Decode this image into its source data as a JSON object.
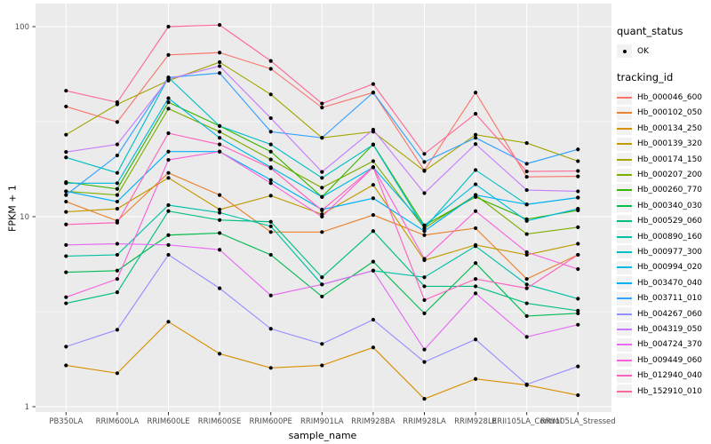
{
  "axes": {
    "x_label": "sample_name",
    "y_label": "FPKM + 1"
  },
  "legend": {
    "quant_status_title": "quant_status",
    "quant_status_value": "OK",
    "tracking_id_title": "tracking_id"
  },
  "chart_data": {
    "type": "line",
    "title": "",
    "xlabel": "sample_name",
    "ylabel": "FPKM + 1",
    "y_scale": "log10",
    "ylim": [
      1,
      110
    ],
    "y_ticks": [
      1,
      10,
      100
    ],
    "y_minor_ticks": [
      3.162,
      31.62
    ],
    "grid": true,
    "legend_position": "right",
    "panel_background": "#EBEBEB",
    "grid_color": "#FFFFFF",
    "point_color": "#000000",
    "quant_status": "OK",
    "categories": [
      "PB350LA",
      "RRIM600LA",
      "RRIM600LE",
      "RRIM600SE",
      "RRIM600PE",
      "RRIM901LA",
      "RRIM928BA",
      "RRIM928LA",
      "RRIM928LE",
      "RRII105LA_Control",
      "RRII105LA_Stressed"
    ],
    "series": [
      {
        "name": "Hb_000046_600",
        "color": "#F8766D",
        "values": [
          38,
          31.5,
          71,
          73,
          60,
          37.5,
          45,
          17.5,
          45,
          16.2,
          16.3
        ]
      },
      {
        "name": "Hb_000102_050",
        "color": "#EA8331",
        "values": [
          12,
          9.5,
          17,
          13,
          8.3,
          8.3,
          10.2,
          8.0,
          8.7,
          4.7,
          6.3
        ]
      },
      {
        "name": "Hb_000134_250",
        "color": "#D89000",
        "values": [
          1.65,
          1.5,
          2.8,
          1.9,
          1.6,
          1.65,
          2.05,
          1.1,
          1.4,
          1.3,
          1.15
        ]
      },
      {
        "name": "Hb_000139_320",
        "color": "#C09B00",
        "values": [
          10.6,
          11,
          16,
          10.9,
          12.9,
          10.3,
          14.7,
          5.9,
          7.1,
          6.3,
          7.2
        ]
      },
      {
        "name": "Hb_000174_150",
        "color": "#A3A500",
        "values": [
          27,
          39,
          52,
          65,
          44,
          26,
          28,
          17.4,
          27,
          24.4,
          19.6
        ]
      },
      {
        "name": "Hb_000207_200",
        "color": "#7CAE00",
        "values": [
          13.6,
          13,
          37,
          28,
          20,
          14.2,
          19.6,
          8.7,
          13,
          8.1,
          8.8
        ]
      },
      {
        "name": "Hb_000260_770",
        "color": "#39B600",
        "values": [
          15.2,
          14,
          40,
          30,
          22,
          12.7,
          24,
          9.0,
          12.7,
          9.7,
          10.8
        ]
      },
      {
        "name": "Hb_000340_030",
        "color": "#00BB4E",
        "values": [
          5.1,
          5.2,
          8.0,
          8.2,
          6.3,
          3.8,
          5.8,
          3.1,
          5.7,
          3.0,
          3.1
        ]
      },
      {
        "name": "Hb_000529_060",
        "color": "#00BF7D",
        "values": [
          3.5,
          4.0,
          10.7,
          9.6,
          9.4,
          4.8,
          8.4,
          4.3,
          4.3,
          3.5,
          3.2
        ]
      },
      {
        "name": "Hb_000890_160",
        "color": "#00C1A3",
        "values": [
          6.2,
          6.3,
          11.5,
          10.5,
          8.9,
          4.4,
          5.2,
          4.8,
          7.0,
          4.4,
          3.7
        ]
      },
      {
        "name": "Hb_000977_300",
        "color": "#00BFC4",
        "values": [
          20.5,
          17,
          54,
          30,
          24,
          16,
          23.9,
          8.7,
          17.6,
          11.6,
          12.6
        ]
      },
      {
        "name": "Hb_000994_020",
        "color": "#00BAE0",
        "values": [
          15,
          15,
          42,
          26,
          18.2,
          12.7,
          18.2,
          9.0,
          14.8,
          9.5,
          11
        ]
      },
      {
        "name": "Hb_003470_040",
        "color": "#00B0F6",
        "values": [
          13.6,
          12,
          22,
          22,
          15.6,
          10.9,
          12.5,
          8.4,
          13,
          11.6,
          12.6
        ]
      },
      {
        "name": "Hb_003711_010",
        "color": "#35A2FF",
        "values": [
          13,
          21,
          54,
          57,
          28,
          26,
          45,
          19.4,
          26,
          19,
          22.6
        ]
      },
      {
        "name": "Hb_004267_060",
        "color": "#9590FF",
        "values": [
          2.07,
          2.54,
          6.3,
          4.2,
          2.57,
          2.14,
          2.87,
          1.72,
          2.26,
          1.31,
          1.63
        ]
      },
      {
        "name": "Hb_004319_050",
        "color": "#C77CFF",
        "values": [
          21.9,
          24,
          53,
          62,
          33,
          17.2,
          28.7,
          13.3,
          24.1,
          13.8,
          13.6
        ]
      },
      {
        "name": "Hb_004724_370",
        "color": "#E76BF3",
        "values": [
          7.1,
          7.2,
          7.1,
          6.7,
          3.85,
          4.4,
          5.2,
          2.0,
          3.95,
          2.33,
          2.7
        ]
      },
      {
        "name": "Hb_009449_060",
        "color": "#FA62DB",
        "values": [
          3.77,
          4.7,
          19.9,
          22,
          15,
          10,
          18.2,
          6.0,
          10.7,
          6.5,
          5.3
        ]
      },
      {
        "name": "Hb_012940_040",
        "color": "#FF62BC",
        "values": [
          9.1,
          9.3,
          27.5,
          24,
          18,
          10.8,
          18.2,
          3.64,
          4.7,
          4.2,
          6.3
        ]
      },
      {
        "name": "Hb_152910_010",
        "color": "#FF6A98",
        "values": [
          46,
          40,
          100,
          102,
          66,
          39.4,
          49.9,
          21.4,
          34.8,
          17.3,
          17.4
        ]
      }
    ]
  }
}
